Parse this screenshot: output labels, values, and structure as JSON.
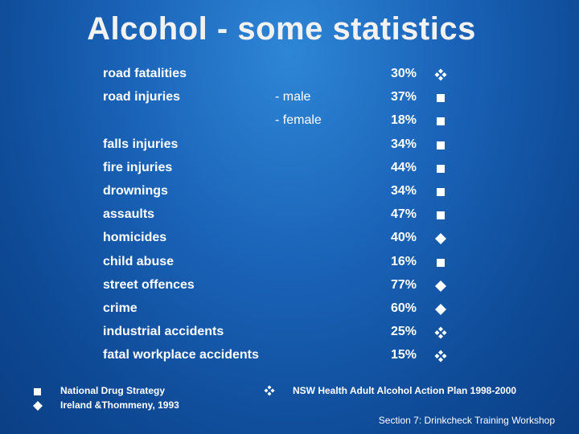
{
  "title": "Alcohol - some statistics",
  "rows": [
    {
      "label": "road fatalities",
      "sub": "",
      "pct": "30%",
      "marker": "diamond4-icon"
    },
    {
      "label": "road injuries",
      "sub": "- male",
      "pct": "37%",
      "marker": "square-icon"
    },
    {
      "label": "",
      "sub": "- female",
      "pct": "18%",
      "marker": "square-icon"
    },
    {
      "label": "falls injuries",
      "sub": "",
      "pct": "34%",
      "marker": "square-icon"
    },
    {
      "label": "fire injuries",
      "sub": "",
      "pct": "44%",
      "marker": "square-icon"
    },
    {
      "label": "drownings",
      "sub": "",
      "pct": "34%",
      "marker": "square-icon"
    },
    {
      "label": "assaults",
      "sub": "",
      "pct": "47%",
      "marker": "square-icon"
    },
    {
      "label": "homicides",
      "sub": "",
      "pct": "40%",
      "marker": "diamond-icon"
    },
    {
      "label": "child abuse",
      "sub": "",
      "pct": "16%",
      "marker": "square-icon"
    },
    {
      "label": "street offences",
      "sub": "",
      "pct": "77%",
      "marker": "diamond-icon"
    },
    {
      "label": "crime",
      "sub": "",
      "pct": "60%",
      "marker": "diamond-icon"
    },
    {
      "label": "industrial accidents",
      "sub": "",
      "pct": "25%",
      "marker": "diamond4-icon"
    },
    {
      "label": "fatal workplace accidents",
      "sub": "",
      "pct": "15%",
      "marker": "diamond4-icon"
    }
  ],
  "footer": {
    "source1": "National Drug Strategy",
    "source2": "Ireland &Thommeny, 1993",
    "source3": "NSW Health Adult Alcohol Action Plan 1998-2000",
    "caption": "Section 7: Drinkcheck Training Workshop"
  }
}
